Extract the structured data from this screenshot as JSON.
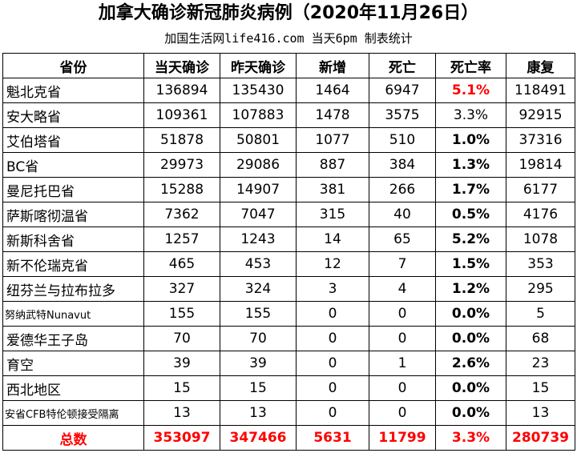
{
  "title": "加拿大确诊新冠肺炎病例（2020年11月26日）",
  "subtitle": "加国生活网life416.com 当天6pm 制表统计",
  "headers": [
    "省份",
    "当天确诊",
    "昨天确诊",
    "新增",
    "死亡",
    "死亡率",
    "康复"
  ],
  "rows": [
    {
      "province": "魁北克省",
      "today": "136894",
      "yesterday": "135430",
      "new": "1464",
      "deaths": "6947",
      "rate": "5.1%",
      "recovered": "118491",
      "rate_color": "#ff0000",
      "rate_bold": true
    },
    {
      "province": "安大略省",
      "today": "109361",
      "yesterday": "107883",
      "new": "1478",
      "deaths": "3575",
      "rate": "3.3%",
      "recovered": "92915",
      "rate_color": "#000000",
      "rate_bold": false
    },
    {
      "province": "艾伯塔省",
      "today": "51878",
      "yesterday": "50801",
      "new": "1077",
      "deaths": "510",
      "rate": "1.0%",
      "recovered": "37316",
      "rate_color": "#000000",
      "rate_bold": true
    },
    {
      "province": "BC省",
      "today": "29973",
      "yesterday": "29086",
      "new": "887",
      "deaths": "384",
      "rate": "1.3%",
      "recovered": "19814",
      "rate_color": "#000000",
      "rate_bold": true
    },
    {
      "province": "曼尼托巴省",
      "today": "15288",
      "yesterday": "14907",
      "new": "381",
      "deaths": "266",
      "rate": "1.7%",
      "recovered": "6177",
      "rate_color": "#000000",
      "rate_bold": true
    },
    {
      "province": "萨斯喀彻温省",
      "today": "7362",
      "yesterday": "7047",
      "new": "315",
      "deaths": "40",
      "rate": "0.5%",
      "recovered": "4176",
      "rate_color": "#000000",
      "rate_bold": true
    },
    {
      "province": "新斯科舍省",
      "today": "1257",
      "yesterday": "1243",
      "new": "14",
      "deaths": "65",
      "rate": "5.2%",
      "recovered": "1078",
      "rate_color": "#000000",
      "rate_bold": true
    },
    {
      "province": "新不伦瑞克省",
      "today": "465",
      "yesterday": "453",
      "new": "12",
      "deaths": "7",
      "rate": "1.5%",
      "recovered": "353",
      "rate_color": "#000000",
      "rate_bold": true
    },
    {
      "province": "纽芬兰与拉布拉多",
      "today": "327",
      "yesterday": "324",
      "new": "3",
      "deaths": "4",
      "rate": "1.2%",
      "recovered": "295",
      "rate_color": "#000000",
      "rate_bold": true
    },
    {
      "province": "努纳武特Nunavut",
      "today": "155",
      "yesterday": "155",
      "new": "0",
      "deaths": "0",
      "rate": "0.0%",
      "recovered": "5",
      "rate_color": "#000000",
      "rate_bold": true
    },
    {
      "province": "爱德华王子岛",
      "today": "70",
      "yesterday": "70",
      "new": "0",
      "deaths": "0",
      "rate": "0.0%",
      "recovered": "68",
      "rate_color": "#000000",
      "rate_bold": true
    },
    {
      "province": "育空",
      "today": "39",
      "yesterday": "39",
      "new": "0",
      "deaths": "1",
      "rate": "2.6%",
      "recovered": "23",
      "rate_color": "#000000",
      "rate_bold": true
    },
    {
      "province": "西北地区",
      "today": "15",
      "yesterday": "15",
      "new": "0",
      "deaths": "0",
      "rate": "0.0%",
      "recovered": "15",
      "rate_color": "#000000",
      "rate_bold": true
    },
    {
      "province": "安省CFB特伦顿接受隔离",
      "today": "13",
      "yesterday": "13",
      "new": "0",
      "deaths": "0",
      "rate": "0.0%",
      "recovered": "13",
      "rate_color": "#000000",
      "rate_bold": true
    }
  ],
  "total": {
    "label": "总数",
    "today": "353097",
    "yesterday": "347466",
    "new": "5631",
    "deaths": "11799",
    "rate": "3.3%",
    "recovered": "280739",
    "color": "#ff0000"
  }
}
